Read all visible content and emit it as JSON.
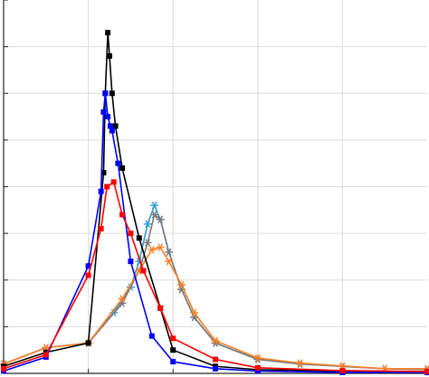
{
  "chart_data": {
    "type": "line",
    "title": "",
    "xlabel": "",
    "ylabel": "",
    "xlim": [
      0,
      5
    ],
    "ylim": [
      0,
      8
    ],
    "grid": true,
    "legend": "none",
    "series": [
      {
        "color": "#000000",
        "marker": "square",
        "points": [
          [
            0,
            0.15
          ],
          [
            0.5,
            0.45
          ],
          [
            1.0,
            0.65
          ],
          [
            1.18,
            4.3
          ],
          [
            1.2,
            6.0
          ],
          [
            1.23,
            7.3
          ],
          [
            1.25,
            6.8
          ],
          [
            1.28,
            6.0
          ],
          [
            1.32,
            5.3
          ],
          [
            1.4,
            4.4
          ],
          [
            1.6,
            2.9
          ],
          [
            1.85,
            1.4
          ],
          [
            2.0,
            0.5
          ],
          [
            2.5,
            0.15
          ],
          [
            3.0,
            0.08
          ],
          [
            4.0,
            0.05
          ],
          [
            5.0,
            0.04
          ]
        ]
      },
      {
        "color": "#0000ff",
        "marker": "square",
        "points": [
          [
            0,
            0.05
          ],
          [
            0.5,
            0.35
          ],
          [
            1.0,
            2.3
          ],
          [
            1.15,
            3.9
          ],
          [
            1.18,
            5.6
          ],
          [
            1.2,
            6.0
          ],
          [
            1.23,
            5.5
          ],
          [
            1.26,
            5.3
          ],
          [
            1.28,
            5.2
          ],
          [
            1.35,
            4.5
          ],
          [
            1.5,
            2.4
          ],
          [
            1.75,
            0.8
          ],
          [
            2.0,
            0.25
          ],
          [
            2.5,
            0.1
          ],
          [
            3.0,
            0.05
          ],
          [
            4.0,
            0.02
          ],
          [
            5.0,
            0.02
          ]
        ]
      },
      {
        "color": "#ff0000",
        "marker": "square",
        "points": [
          [
            0,
            0.1
          ],
          [
            0.5,
            0.4
          ],
          [
            1.0,
            2.1
          ],
          [
            1.15,
            3.1
          ],
          [
            1.22,
            4.0
          ],
          [
            1.3,
            4.1
          ],
          [
            1.4,
            3.4
          ],
          [
            1.5,
            3.0
          ],
          [
            1.65,
            2.2
          ],
          [
            1.85,
            1.4
          ],
          [
            2.0,
            0.75
          ],
          [
            2.5,
            0.3
          ],
          [
            3.0,
            0.12
          ],
          [
            4.0,
            0.06
          ],
          [
            5.0,
            0.04
          ]
        ]
      },
      {
        "color": "#2f9ed8",
        "marker": "star",
        "points": [
          [
            0,
            0.2
          ],
          [
            0.5,
            0.55
          ],
          [
            1.0,
            0.65
          ],
          [
            1.3,
            1.3
          ],
          [
            1.5,
            1.85
          ],
          [
            1.6,
            2.4
          ],
          [
            1.7,
            3.2
          ],
          [
            1.78,
            3.6
          ],
          [
            1.85,
            3.3
          ],
          [
            1.95,
            2.6
          ],
          [
            2.1,
            1.8
          ],
          [
            2.25,
            1.2
          ],
          [
            2.5,
            0.65
          ],
          [
            3.0,
            0.3
          ],
          [
            3.5,
            0.2
          ],
          [
            4.0,
            0.15
          ],
          [
            4.5,
            0.1
          ],
          [
            5.0,
            0.08
          ]
        ]
      },
      {
        "color": "#7a7a7a",
        "marker": "star",
        "points": [
          [
            0,
            0.2
          ],
          [
            0.5,
            0.55
          ],
          [
            1.0,
            0.65
          ],
          [
            1.4,
            1.5
          ],
          [
            1.6,
            2.2
          ],
          [
            1.7,
            2.8
          ],
          [
            1.78,
            3.4
          ],
          [
            1.85,
            3.3
          ],
          [
            1.95,
            2.6
          ],
          [
            2.1,
            1.8
          ],
          [
            2.25,
            1.2
          ],
          [
            2.5,
            0.65
          ],
          [
            3.0,
            0.3
          ],
          [
            3.5,
            0.2
          ],
          [
            4.0,
            0.15
          ],
          [
            4.5,
            0.1
          ],
          [
            5.0,
            0.08
          ]
        ]
      },
      {
        "color": "#ff7f27",
        "marker": "star",
        "points": [
          [
            0,
            0.2
          ],
          [
            0.5,
            0.55
          ],
          [
            1.0,
            0.65
          ],
          [
            1.4,
            1.6
          ],
          [
            1.6,
            2.2
          ],
          [
            1.75,
            2.65
          ],
          [
            1.85,
            2.7
          ],
          [
            1.95,
            2.4
          ],
          [
            2.1,
            1.9
          ],
          [
            2.25,
            1.3
          ],
          [
            2.5,
            0.7
          ],
          [
            3.0,
            0.33
          ],
          [
            3.5,
            0.22
          ],
          [
            4.0,
            0.16
          ],
          [
            4.5,
            0.1
          ],
          [
            5.0,
            0.1
          ]
        ]
      }
    ]
  }
}
